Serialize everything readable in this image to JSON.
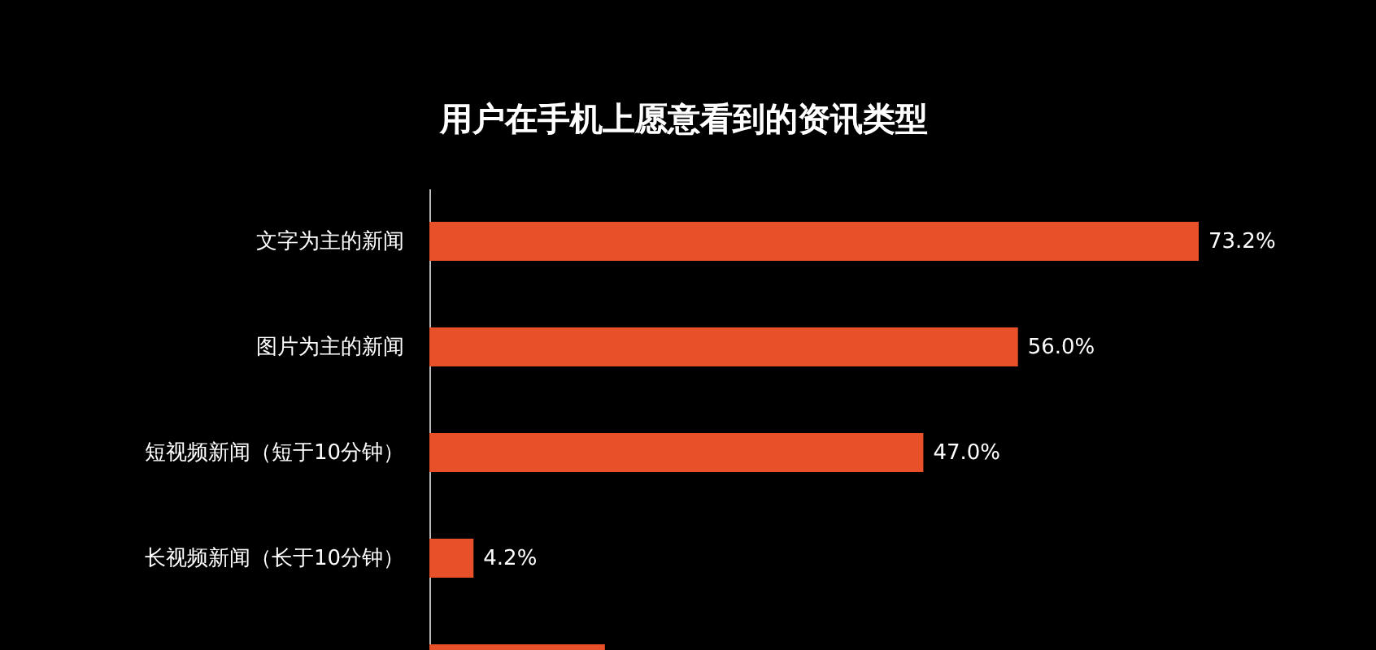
{
  "chart_data": {
    "type": "bar",
    "orientation": "horizontal",
    "title": "用户在手机上愿意看到的资讯类型",
    "categories": [
      "文字为主的新闻",
      "图片为主的新闻",
      "短视频新闻（短于10分钟）",
      "长视频新闻（长于10分钟）",
      null
    ],
    "values": [
      73.2,
      56.0,
      47.0,
      4.2,
      16.7
    ],
    "value_labels": [
      "73.2%",
      "56.0%",
      "47.0%",
      "4.2%",
      null
    ],
    "color": "#e8502a"
  }
}
